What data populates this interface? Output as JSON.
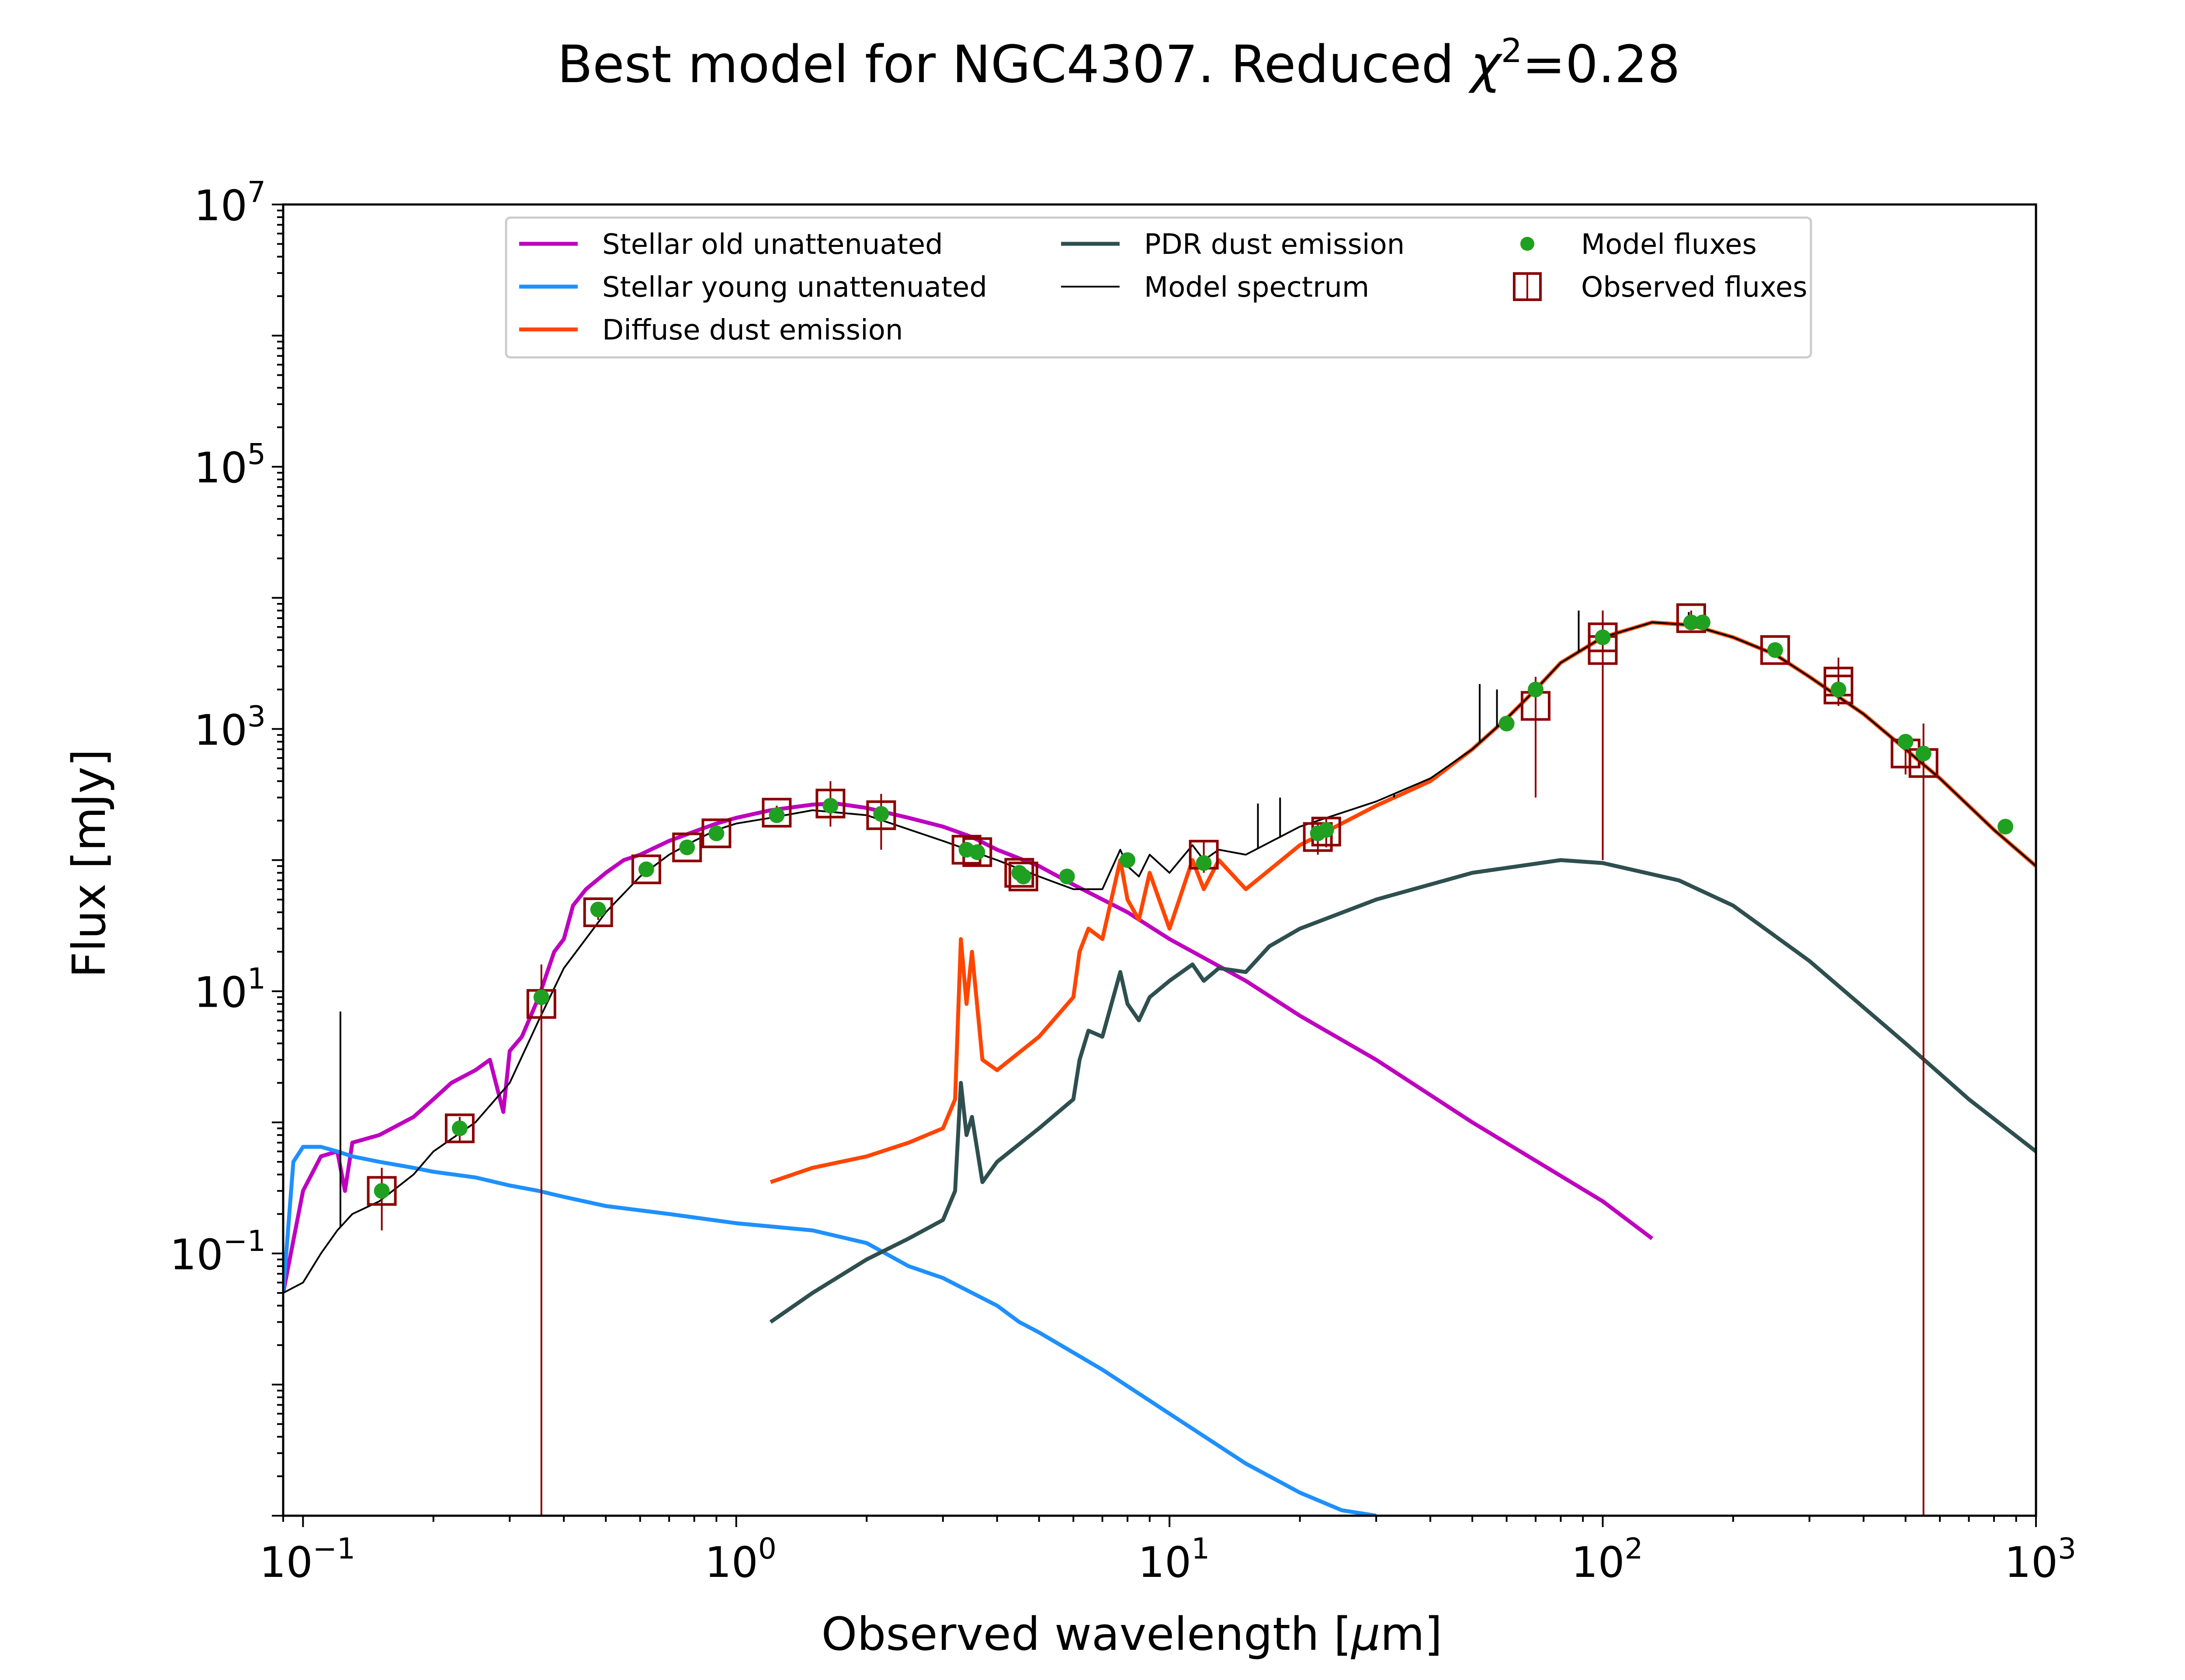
{
  "chart_data": {
    "type": "line",
    "title": {
      "main": "Best model for NGC4307. Reduced ",
      "chi": "χ",
      "exp": "2",
      "value": "=0.28"
    },
    "xlabel": {
      "text": "Observed wavelength [",
      "mu": "μ",
      "unit": "m]"
    },
    "ylabel": "Flux [mJy]",
    "x_scale": "log",
    "y_scale": "log",
    "xlim": [
      0.09,
      1000
    ],
    "ylim": [
      0.001,
      10000000
    ],
    "x_ticks": [
      {
        "value": 0.1,
        "base": "10",
        "exp": "−1"
      },
      {
        "value": 1,
        "base": "10",
        "exp": "0"
      },
      {
        "value": 10,
        "base": "10",
        "exp": "1"
      },
      {
        "value": 100,
        "base": "10",
        "exp": "2"
      },
      {
        "value": 1000,
        "base": "10",
        "exp": "3"
      }
    ],
    "y_ticks": [
      {
        "value": 0.1,
        "base": "10",
        "exp": "−1"
      },
      {
        "value": 10,
        "base": "10",
        "exp": "1"
      },
      {
        "value": 1000,
        "base": "10",
        "exp": "3"
      },
      {
        "value": 100000,
        "base": "10",
        "exp": "5"
      },
      {
        "value": 10000000,
        "base": "10",
        "exp": "7"
      }
    ],
    "grid": false,
    "legend_position": "top-center",
    "series": [
      {
        "name": "Stellar old unattenuated",
        "color": "#bf00bf",
        "x": [
          0.09,
          0.1,
          0.11,
          0.12,
          0.125,
          0.13,
          0.15,
          0.18,
          0.2,
          0.22,
          0.25,
          0.27,
          0.29,
          0.3,
          0.32,
          0.35,
          0.38,
          0.4,
          0.42,
          0.45,
          0.5,
          0.55,
          0.6,
          0.7,
          0.8,
          0.9,
          1.0,
          1.2,
          1.5,
          1.7,
          2.0,
          2.5,
          3.0,
          3.5,
          4.0,
          5.0,
          6.0,
          8.0,
          10,
          15,
          20,
          30,
          50,
          100,
          130
        ],
        "y": [
          0.05,
          0.3,
          0.55,
          0.6,
          0.3,
          0.7,
          0.8,
          1.1,
          1.5,
          2.0,
          2.5,
          3.0,
          1.2,
          3.5,
          4.5,
          9.0,
          20,
          25,
          45,
          60,
          80,
          100,
          110,
          140,
          165,
          190,
          210,
          240,
          265,
          270,
          250,
          210,
          180,
          150,
          120,
          90,
          65,
          40,
          25,
          12,
          6.5,
          3.0,
          1.0,
          0.25,
          0.13
        ]
      },
      {
        "name": "Stellar young unattenuated",
        "color": "#1e90ff",
        "x": [
          0.09,
          0.095,
          0.1,
          0.11,
          0.12,
          0.13,
          0.15,
          0.18,
          0.2,
          0.25,
          0.3,
          0.35,
          0.4,
          0.5,
          0.7,
          1.0,
          1.5,
          2.0,
          2.5,
          3.0,
          4.0,
          4.5,
          5.0,
          7.0,
          10,
          15,
          20,
          25,
          30
        ],
        "y": [
          0.05,
          0.5,
          0.65,
          0.65,
          0.6,
          0.55,
          0.5,
          0.45,
          0.42,
          0.38,
          0.33,
          0.3,
          0.27,
          0.23,
          0.2,
          0.17,
          0.15,
          0.12,
          0.08,
          0.065,
          0.04,
          0.03,
          0.025,
          0.013,
          0.006,
          0.0025,
          0.0015,
          0.0011,
          0.001
        ]
      },
      {
        "name": "Diffuse dust emission",
        "color": "#ff4500",
        "x": [
          1.2,
          1.5,
          2.0,
          2.5,
          3.0,
          3.2,
          3.3,
          3.4,
          3.5,
          3.7,
          4.0,
          5.0,
          6.0,
          6.2,
          6.5,
          7.0,
          7.7,
          8.0,
          8.5,
          9.0,
          10,
          11.3,
          12,
          13,
          15,
          20,
          30,
          40,
          50,
          60,
          70,
          80,
          100,
          130,
          160,
          200,
          250,
          300,
          400,
          500,
          600,
          800,
          1000
        ],
        "y": [
          0.35,
          0.45,
          0.55,
          0.7,
          0.9,
          1.5,
          25,
          8,
          20,
          3.0,
          2.5,
          4.5,
          9.0,
          20,
          30,
          25,
          100,
          50,
          35,
          80,
          30,
          100,
          60,
          100,
          60,
          130,
          260,
          400,
          700,
          1200,
          2000,
          3200,
          5000,
          6500,
          6200,
          5000,
          3700,
          2500,
          1300,
          700,
          420,
          170,
          90
        ]
      },
      {
        "name": "PDR dust emission",
        "color": "#2f4f4f",
        "x": [
          1.2,
          1.5,
          2.0,
          2.5,
          3.0,
          3.2,
          3.3,
          3.4,
          3.5,
          3.7,
          4.0,
          5.0,
          6.0,
          6.2,
          6.5,
          7.0,
          7.7,
          8.0,
          8.5,
          9.0,
          10,
          11.3,
          12,
          13,
          15,
          17,
          20,
          30,
          50,
          80,
          100,
          150,
          200,
          300,
          500,
          700,
          1000
        ],
        "y": [
          0.03,
          0.05,
          0.09,
          0.13,
          0.18,
          0.3,
          2.0,
          0.8,
          1.1,
          0.35,
          0.5,
          0.9,
          1.5,
          3.0,
          5.0,
          4.5,
          14,
          8.0,
          6.0,
          9.0,
          12,
          16,
          12,
          15,
          14,
          22,
          30,
          50,
          80,
          100,
          95,
          70,
          45,
          17,
          4.0,
          1.5,
          0.6
        ]
      },
      {
        "name": "Model spectrum",
        "color": "#000000",
        "x": [
          0.09,
          0.1,
          0.11,
          0.12,
          0.13,
          0.15,
          0.18,
          0.2,
          0.25,
          0.3,
          0.35,
          0.4,
          0.5,
          0.6,
          0.7,
          0.8,
          0.9,
          1.0,
          1.2,
          1.5,
          2.0,
          3.0,
          4.0,
          5.0,
          6.0,
          7.0,
          7.7,
          8.0,
          8.5,
          9.0,
          10,
          11.3,
          12,
          13,
          15,
          20,
          30,
          40,
          50,
          60,
          70,
          80,
          100,
          130,
          160,
          200,
          250,
          300,
          400,
          500,
          600,
          800,
          1000
        ],
        "y": [
          0.05,
          0.06,
          0.1,
          0.15,
          0.2,
          0.25,
          0.4,
          0.6,
          1.0,
          2.0,
          6.0,
          15,
          40,
          75,
          110,
          140,
          170,
          190,
          210,
          240,
          220,
          140,
          100,
          75,
          60,
          60,
          120,
          90,
          75,
          110,
          80,
          130,
          100,
          120,
          110,
          180,
          280,
          420,
          700,
          1200,
          2000,
          3200,
          5000,
          6500,
          6200,
          5000,
          3700,
          2500,
          1300,
          700,
          420,
          170,
          90
        ]
      }
    ],
    "model_spectrum_lines": [
      {
        "x": 0.122,
        "y_peak": 7.0
      },
      {
        "x": 16,
        "y_peak": 270
      },
      {
        "x": 18,
        "y_peak": 300
      },
      {
        "x": 33,
        "y_peak": 300
      },
      {
        "x": 34,
        "y_peak": 330
      },
      {
        "x": 52,
        "y_peak": 2200
      },
      {
        "x": 57,
        "y_peak": 2000
      },
      {
        "x": 88,
        "y_peak": 8000
      },
      {
        "x": 158,
        "y_peak": 7800
      }
    ],
    "model_fluxes": {
      "name": "Model fluxes",
      "color": "#20a020",
      "points": [
        {
          "x": 0.152,
          "y": 0.3
        },
        {
          "x": 0.23,
          "y": 0.9
        },
        {
          "x": 0.355,
          "y": 9.0
        },
        {
          "x": 0.48,
          "y": 42
        },
        {
          "x": 0.62,
          "y": 85
        },
        {
          "x": 0.77,
          "y": 125
        },
        {
          "x": 0.9,
          "y": 160
        },
        {
          "x": 1.24,
          "y": 220
        },
        {
          "x": 1.65,
          "y": 260
        },
        {
          "x": 2.16,
          "y": 225
        },
        {
          "x": 3.4,
          "y": 120
        },
        {
          "x": 3.6,
          "y": 115
        },
        {
          "x": 4.5,
          "y": 80
        },
        {
          "x": 4.6,
          "y": 75
        },
        {
          "x": 5.8,
          "y": 75
        },
        {
          "x": 8.0,
          "y": 100
        },
        {
          "x": 12,
          "y": 95
        },
        {
          "x": 22,
          "y": 160
        },
        {
          "x": 23,
          "y": 170
        },
        {
          "x": 60,
          "y": 1100
        },
        {
          "x": 70,
          "y": 2000
        },
        {
          "x": 100,
          "y": 5000
        },
        {
          "x": 160,
          "y": 6500
        },
        {
          "x": 170,
          "y": 6500
        },
        {
          "x": 250,
          "y": 4000
        },
        {
          "x": 350,
          "y": 2000
        },
        {
          "x": 500,
          "y": 800
        },
        {
          "x": 550,
          "y": 650
        },
        {
          "x": 850,
          "y": 180
        }
      ]
    },
    "observed_fluxes": {
      "name": "Observed fluxes",
      "color": "#8b0000",
      "points": [
        {
          "x": 0.152,
          "y": 0.3,
          "err_low": 0.15,
          "err_high": 0.45
        },
        {
          "x": 0.23,
          "y": 0.9,
          "err_low": 0.7,
          "err_high": 1.1
        },
        {
          "x": 0.355,
          "y": 8.0,
          "err_low": 0.001,
          "err_high": 16
        },
        {
          "x": 0.48,
          "y": 40,
          "err_low": 35,
          "err_high": 45
        },
        {
          "x": 0.62,
          "y": 85,
          "err_low": 78,
          "err_high": 92
        },
        {
          "x": 0.77,
          "y": 125,
          "err_low": 115,
          "err_high": 135
        },
        {
          "x": 0.9,
          "y": 160,
          "err_low": 148,
          "err_high": 172
        },
        {
          "x": 1.24,
          "y": 230,
          "err_low": 200,
          "err_high": 260
        },
        {
          "x": 1.65,
          "y": 270,
          "err_low": 180,
          "err_high": 400
        },
        {
          "x": 2.16,
          "y": 220,
          "err_low": 120,
          "err_high": 320
        },
        {
          "x": 3.4,
          "y": 120,
          "err_low": 105,
          "err_high": 135
        },
        {
          "x": 3.6,
          "y": 115,
          "err_low": 100,
          "err_high": 130
        },
        {
          "x": 4.5,
          "y": 80,
          "err_low": 72,
          "err_high": 88
        },
        {
          "x": 4.6,
          "y": 75,
          "err_low": 68,
          "err_high": 82
        },
        {
          "x": 12,
          "y": 110,
          "err_low": 80,
          "err_high": 140
        },
        {
          "x": 22,
          "y": 150,
          "err_low": 110,
          "err_high": 190
        },
        {
          "x": 23,
          "y": 165,
          "err_low": 125,
          "err_high": 205
        },
        {
          "x": 70,
          "y": 1500,
          "err_low": 300,
          "err_high": 2500
        },
        {
          "x": 100,
          "y": 4000,
          "err_low": 100,
          "err_high": 8000
        },
        {
          "x": 100,
          "y": 5000,
          "err_low": 4500,
          "err_high": 5500
        },
        {
          "x": 160,
          "y": 7000,
          "err_low": 6000,
          "err_high": 8000
        },
        {
          "x": 250,
          "y": 4000,
          "err_low": 3500,
          "err_high": 4500
        },
        {
          "x": 350,
          "y": 2300,
          "err_low": 1500,
          "err_high": 3500
        },
        {
          "x": 350,
          "y": 2000,
          "err_low": 1700,
          "err_high": 2300
        },
        {
          "x": 500,
          "y": 650,
          "err_low": 450,
          "err_high": 850
        },
        {
          "x": 550,
          "y": 550,
          "err_low": 0.001,
          "err_high": 1100
        }
      ]
    },
    "legend": [
      {
        "label": "Stellar old unattenuated",
        "kind": "line",
        "color": "#bf00bf"
      },
      {
        "label": "Stellar young unattenuated",
        "kind": "line",
        "color": "#1e90ff"
      },
      {
        "label": "Diffuse dust emission",
        "kind": "line",
        "color": "#ff4500"
      },
      {
        "label": "PDR dust emission",
        "kind": "line",
        "color": "#2f4f4f"
      },
      {
        "label": "Model spectrum",
        "kind": "thinline",
        "color": "#000000"
      },
      {
        "label": "Model fluxes",
        "kind": "dot",
        "color": "#20a020"
      },
      {
        "label": "Observed fluxes",
        "kind": "square",
        "color": "#8b0000"
      }
    ]
  }
}
